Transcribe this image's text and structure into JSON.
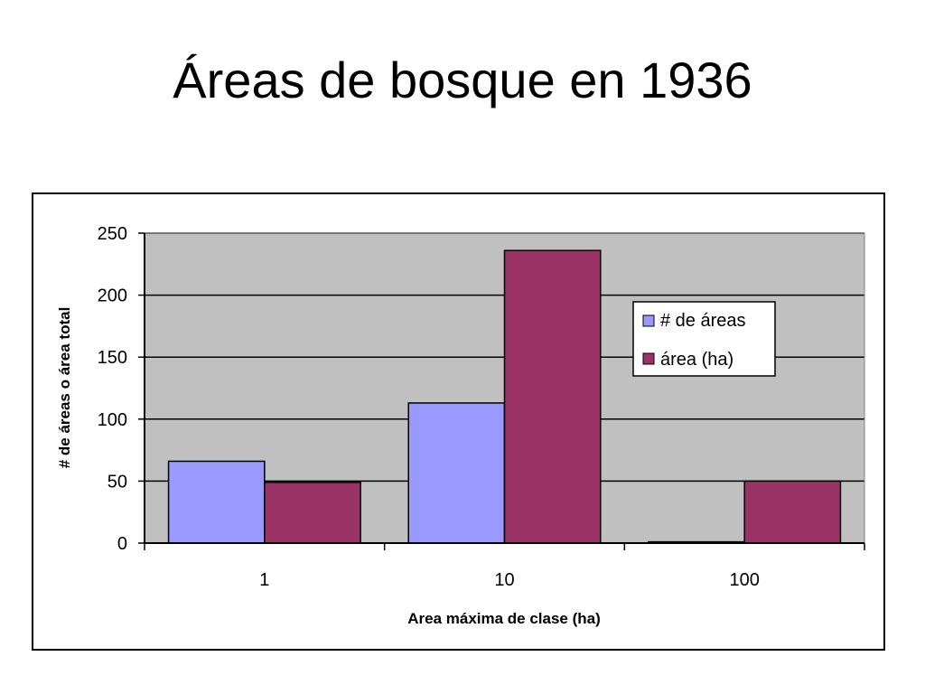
{
  "slide": {
    "title": "Áreas de bosque en 1936"
  },
  "chart_data": {
    "type": "bar",
    "title": "",
    "xlabel": "Area máxima de clase (ha)",
    "ylabel": "# de áreas o área total",
    "categories": [
      "1",
      "10",
      "100"
    ],
    "ylim": [
      0,
      250
    ],
    "yticks": [
      0,
      50,
      100,
      150,
      200,
      250
    ],
    "grid": true,
    "legend_position": "right",
    "plot_background": "#c0c0c0",
    "series": [
      {
        "name": "# de áreas",
        "values": [
          66,
          113,
          1
        ],
        "color": "#9999ff"
      },
      {
        "name": "área (ha)",
        "values": [
          49,
          236,
          50
        ],
        "color": "#993366"
      }
    ]
  }
}
